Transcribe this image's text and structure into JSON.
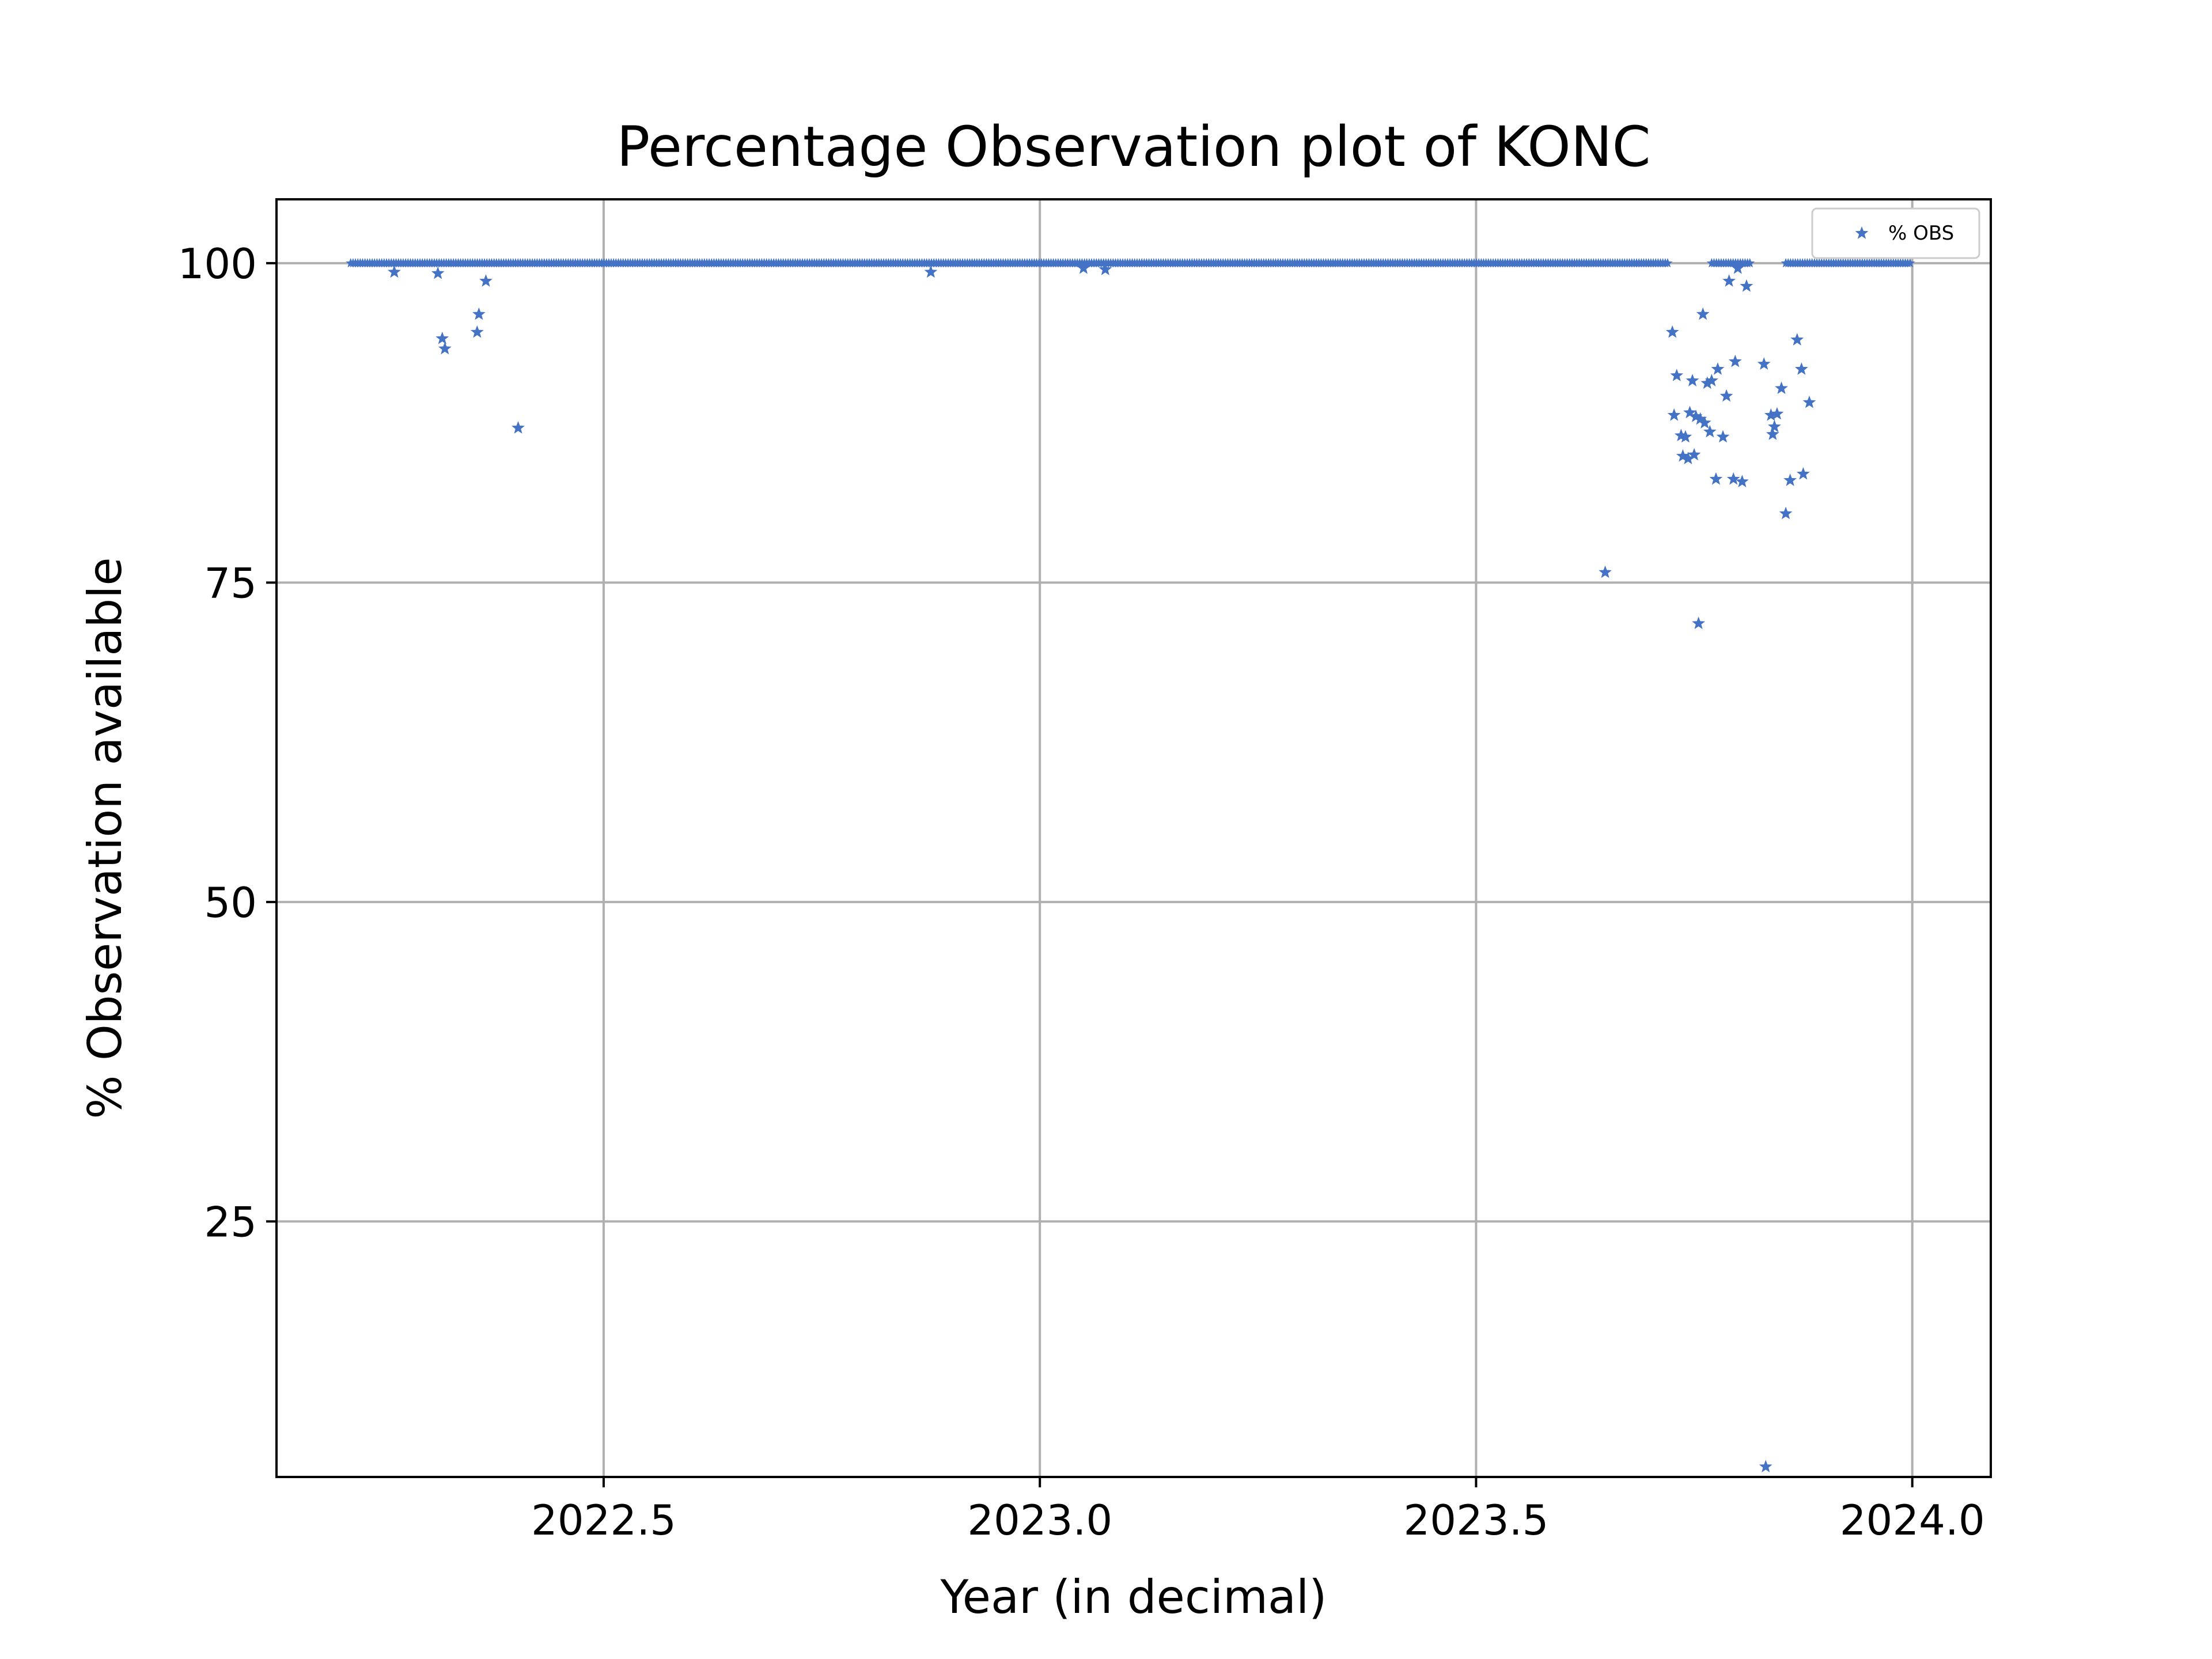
{
  "chart_data": {
    "type": "scatter",
    "title": "Percentage Observation plot of KONC",
    "xlabel": "Year (in decimal)",
    "ylabel": "% Observation available",
    "xlim": [
      2022.125,
      2024.09
    ],
    "ylim": [
      5,
      105
    ],
    "xticks": [
      2022.5,
      2023.0,
      2023.5,
      2024.0
    ],
    "xtick_labels": [
      "2022.5",
      "2023.0",
      "2023.5",
      "2024.0"
    ],
    "yticks": [
      25,
      50,
      75,
      100
    ],
    "ytick_labels": [
      "25",
      "50",
      "75",
      "100"
    ],
    "grid": true,
    "legend": {
      "position": "top-right",
      "entries": [
        "% OBS"
      ]
    },
    "marker_color": "#4472c4",
    "series": [
      {
        "name": "% OBS",
        "marker": "star",
        "baseline_value": 100,
        "baseline_ranges": [
          [
            2022.21,
            2023.72
          ],
          [
            2023.77,
            2023.815
          ],
          [
            2023.855,
            2024.0
          ]
        ],
        "points": [
          [
            2022.26,
            99.3
          ],
          [
            2022.31,
            99.2
          ],
          [
            2022.315,
            94.1
          ],
          [
            2022.318,
            93.3
          ],
          [
            2022.355,
            94.6
          ],
          [
            2022.357,
            96.0
          ],
          [
            2022.365,
            98.6
          ],
          [
            2022.402,
            87.1
          ],
          [
            2022.875,
            99.3
          ],
          [
            2023.05,
            99.6
          ],
          [
            2023.075,
            99.5
          ],
          [
            2023.648,
            75.8
          ],
          [
            2023.725,
            94.6
          ],
          [
            2023.727,
            88.1
          ],
          [
            2023.73,
            91.2
          ],
          [
            2023.735,
            86.5
          ],
          [
            2023.737,
            84.9
          ],
          [
            2023.74,
            86.4
          ],
          [
            2023.743,
            84.7
          ],
          [
            2023.745,
            88.3
          ],
          [
            2023.748,
            90.8
          ],
          [
            2023.75,
            85.0
          ],
          [
            2023.752,
            88.0
          ],
          [
            2023.755,
            71.8
          ],
          [
            2023.757,
            87.8
          ],
          [
            2023.76,
            96.0
          ],
          [
            2023.762,
            87.5
          ],
          [
            2023.765,
            90.6
          ],
          [
            2023.768,
            86.8
          ],
          [
            2023.77,
            90.8
          ],
          [
            2023.775,
            83.1
          ],
          [
            2023.777,
            91.7
          ],
          [
            2023.783,
            86.4
          ],
          [
            2023.787,
            89.6
          ],
          [
            2023.79,
            98.6
          ],
          [
            2023.795,
            83.1
          ],
          [
            2023.797,
            92.3
          ],
          [
            2023.8,
            99.6
          ],
          [
            2023.805,
            82.9
          ],
          [
            2023.81,
            98.2
          ],
          [
            2023.83,
            92.1
          ],
          [
            2023.832,
            5.8
          ],
          [
            2023.838,
            88.1
          ],
          [
            2023.84,
            86.6
          ],
          [
            2023.842,
            87.2
          ],
          [
            2023.845,
            88.2
          ],
          [
            2023.85,
            90.2
          ],
          [
            2023.855,
            80.4
          ],
          [
            2023.86,
            83.0
          ],
          [
            2023.868,
            94.0
          ],
          [
            2023.873,
            91.7
          ],
          [
            2023.875,
            83.5
          ],
          [
            2023.882,
            89.1
          ]
        ]
      }
    ]
  }
}
